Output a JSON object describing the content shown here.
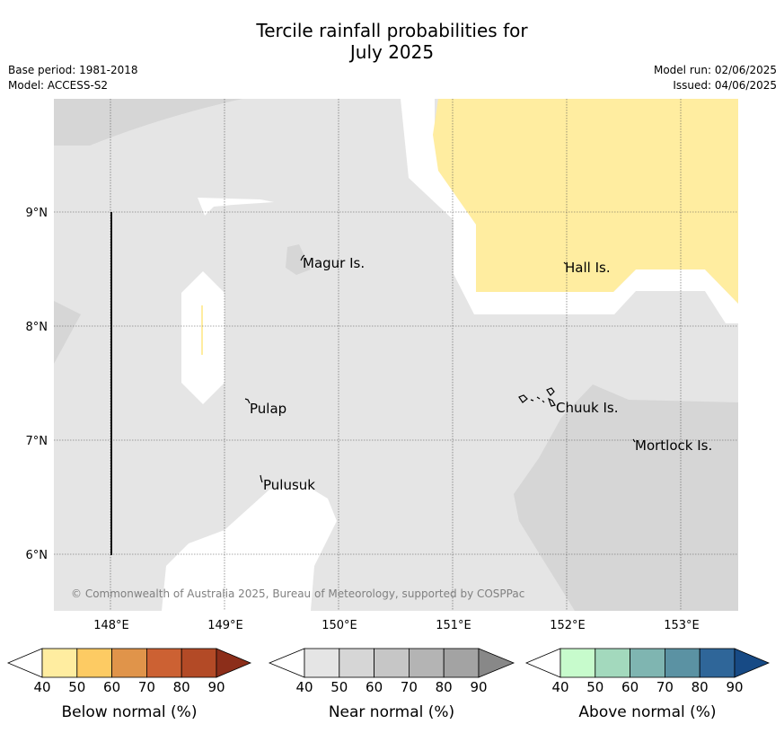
{
  "title_line1": "Tercile rainfall probabilities for",
  "title_line2": "July 2025",
  "meta": {
    "base_period": "Base period: 1981-2018",
    "model": "Model: ACCESS-S2",
    "model_run": "Model run: 02/06/2025",
    "issued": "Issued: 04/06/2025"
  },
  "map": {
    "lon_ticks": [
      "148°E",
      "149°E",
      "150°E",
      "151°E",
      "152°E",
      "153°E"
    ],
    "lat_ticks": [
      "9°N",
      "8°N",
      "7°N",
      "6°N"
    ],
    "places": [
      "Magur Is.",
      "Hall Is.",
      "Pulap",
      "Chuuk Is.",
      "Mortlock Is.",
      "Pulusuk"
    ],
    "copyright": "© Commonwealth of Australia 2025, Bureau of Meteorology, supported by COSPPac"
  },
  "colorbars": [
    {
      "label": "Below normal (%)",
      "ticks": [
        "40",
        "50",
        "60",
        "70",
        "80",
        "90"
      ],
      "colors": [
        "#ffeda0",
        "#fdcb63",
        "#e0944a",
        "#cc6133",
        "#b34a26",
        "#8c2e1a"
      ]
    },
    {
      "label": "Near normal (%)",
      "ticks": [
        "40",
        "50",
        "60",
        "70",
        "80",
        "90"
      ],
      "colors": [
        "#e5e5e5",
        "#d6d6d6",
        "#c6c6c6",
        "#b4b4b4",
        "#a3a3a3",
        "#888888"
      ]
    },
    {
      "label": "Above normal (%)",
      "ticks": [
        "40",
        "50",
        "60",
        "70",
        "80",
        "90"
      ],
      "colors": [
        "#c7fbcc",
        "#a3d9bd",
        "#7fb5b1",
        "#5b92a3",
        "#2f6699",
        "#174a85"
      ]
    }
  ],
  "colors": {
    "near_normal_40_50": "#e5e5e5",
    "near_normal_50_60": "#d6d6d6",
    "below_normal_40_50": "#ffeda0"
  }
}
